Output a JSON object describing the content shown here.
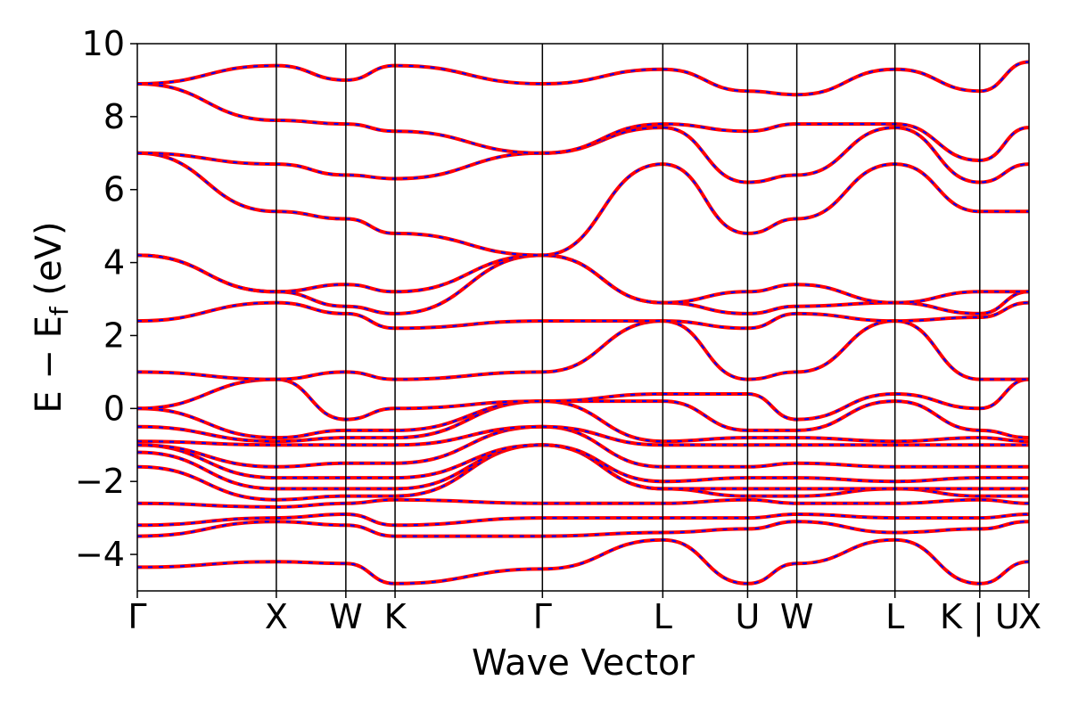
{
  "chart_data": {
    "type": "line",
    "title": "",
    "xlabel": "Wave Vector",
    "ylabel_prefix": "E − E",
    "ylabel_sub": "f",
    "ylabel_suffix": " (eV)",
    "ylim": [
      -5,
      10
    ],
    "yticks": [
      -4,
      -2,
      0,
      2,
      4,
      6,
      8,
      10
    ],
    "ytick_labels": [
      "−4",
      "−2",
      "0",
      "2",
      "4",
      "6",
      "8",
      "10"
    ],
    "kpath": [
      {
        "label": "Γ",
        "k": 0.0
      },
      {
        "label": "X",
        "k": 1.0
      },
      {
        "label": "W",
        "k": 1.5
      },
      {
        "label": "K",
        "k": 1.854
      },
      {
        "label": "Γ",
        "k": 2.914
      },
      {
        "label": "L",
        "k": 3.78
      },
      {
        "label": "U",
        "k": 4.39
      },
      {
        "label": "W",
        "k": 4.744
      },
      {
        "label": "L",
        "k": 5.45
      },
      {
        "label": "K | U",
        "k": 6.06
      },
      {
        "label": "X",
        "k": 6.414
      }
    ],
    "xlim": [
      0,
      6.414
    ],
    "grid": false,
    "series_styles": [
      {
        "color": "#ff0000",
        "style": "solid"
      },
      {
        "color": "#0000ff",
        "style": "dashed"
      }
    ],
    "bands_sampled_at_kpoints": [
      [
        -4.35,
        -4.2,
        -4.25,
        -4.8,
        -4.4,
        -3.6,
        -4.8,
        -4.25,
        -3.6,
        -4.8,
        -4.2
      ],
      [
        -3.5,
        -3.1,
        -3.2,
        -3.5,
        -3.5,
        -3.4,
        -3.3,
        -3.1,
        -3.4,
        -3.3,
        -3.1
      ],
      [
        -3.2,
        -3.0,
        -2.9,
        -3.2,
        -3.0,
        -3.0,
        -3.0,
        -2.9,
        -3.0,
        -3.0,
        -2.9
      ],
      [
        -2.6,
        -2.7,
        -2.6,
        -2.5,
        -2.6,
        -2.6,
        -2.5,
        -2.6,
        -2.6,
        -2.5,
        -2.6
      ],
      [
        -1.6,
        -2.5,
        -2.4,
        -2.4,
        -1.0,
        -2.2,
        -2.4,
        -2.4,
        -2.2,
        -2.4,
        -2.4
      ],
      [
        -1.2,
        -2.2,
        -2.2,
        -2.2,
        -1.0,
        -2.2,
        -2.2,
        -2.2,
        -2.2,
        -2.2,
        -2.2
      ],
      [
        -1.0,
        -1.9,
        -1.9,
        -1.9,
        -1.0,
        -2.0,
        -1.9,
        -1.9,
        -2.0,
        -1.9,
        -1.9
      ],
      [
        -1.0,
        -1.6,
        -1.5,
        -1.5,
        -0.5,
        -1.6,
        -1.6,
        -1.5,
        -1.6,
        -1.6,
        -1.6
      ],
      [
        -0.9,
        -1.0,
        -1.0,
        -1.0,
        -0.5,
        -1.0,
        -1.0,
        -1.0,
        -1.0,
        -1.0,
        -1.0
      ],
      [
        -0.5,
        -0.9,
        -0.8,
        -0.8,
        0.2,
        -0.9,
        -0.8,
        -0.8,
        -0.9,
        -0.8,
        -0.9
      ],
      [
        0.0,
        -0.8,
        -0.6,
        -0.6,
        0.2,
        0.2,
        -0.6,
        -0.6,
        0.2,
        -0.6,
        -0.8
      ],
      [
        0.0,
        0.8,
        -0.3,
        0.0,
        0.2,
        0.4,
        0.4,
        -0.3,
        0.4,
        0.0,
        0.8
      ],
      [
        1.0,
        0.8,
        1.0,
        0.8,
        1.0,
        2.4,
        0.8,
        1.0,
        2.4,
        0.8,
        0.8
      ],
      [
        2.4,
        2.9,
        2.6,
        2.2,
        2.4,
        2.4,
        2.2,
        2.6,
        2.4,
        2.5,
        2.9
      ],
      [
        4.2,
        3.2,
        2.8,
        2.6,
        4.2,
        2.9,
        2.6,
        2.8,
        2.9,
        2.6,
        3.2
      ],
      [
        4.2,
        3.2,
        3.4,
        3.2,
        4.2,
        2.9,
        3.2,
        3.4,
        2.9,
        3.2,
        3.2
      ],
      [
        7.0,
        5.4,
        5.2,
        4.8,
        4.2,
        6.7,
        4.8,
        5.2,
        6.7,
        5.4,
        5.4
      ],
      [
        7.0,
        6.7,
        6.4,
        6.3,
        7.0,
        7.7,
        6.2,
        6.4,
        7.7,
        6.2,
        6.7
      ],
      [
        8.9,
        7.9,
        7.8,
        7.6,
        7.0,
        7.8,
        7.6,
        7.8,
        7.8,
        6.8,
        7.7
      ],
      [
        8.9,
        9.4,
        9.0,
        9.4,
        8.9,
        9.3,
        8.7,
        8.6,
        9.3,
        8.7,
        9.5
      ]
    ]
  }
}
